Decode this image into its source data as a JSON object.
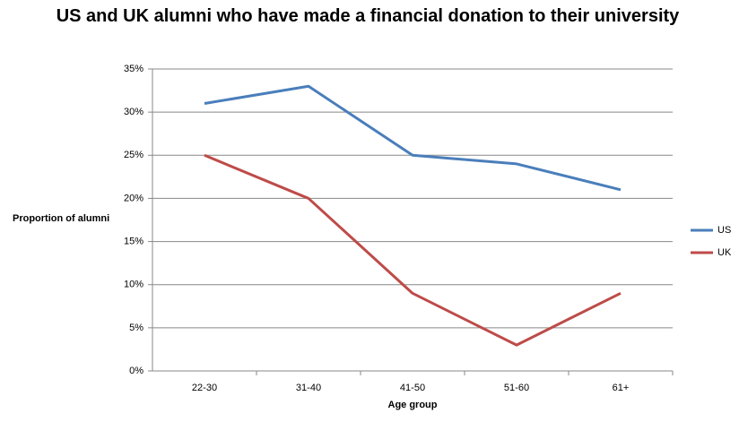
{
  "chart_data": {
    "type": "line",
    "title": "US and UK alumni who have made a financial donation to their university",
    "x_label": "Age group",
    "y_label": "Proportion of alumni",
    "categories": [
      "22-30",
      "31-40",
      "41-50",
      "51-60",
      "61+"
    ],
    "series": [
      {
        "name": "US",
        "color": "#4a7ebb",
        "values": [
          31,
          33,
          25,
          24,
          21
        ]
      },
      {
        "name": "UK",
        "color": "#be4b48",
        "values": [
          25,
          20,
          9,
          3,
          9
        ]
      }
    ],
    "ylim": [
      0,
      35
    ],
    "yticks": [
      {
        "value": 0,
        "label": "0%"
      },
      {
        "value": 5,
        "label": "5%"
      },
      {
        "value": 10,
        "label": "10%"
      },
      {
        "value": 15,
        "label": "15%"
      },
      {
        "value": 20,
        "label": "20%"
      },
      {
        "value": 25,
        "label": "25%"
      },
      {
        "value": 30,
        "label": "30%"
      },
      {
        "value": 35,
        "label": "35%"
      }
    ],
    "grid": true,
    "legend": "right"
  }
}
